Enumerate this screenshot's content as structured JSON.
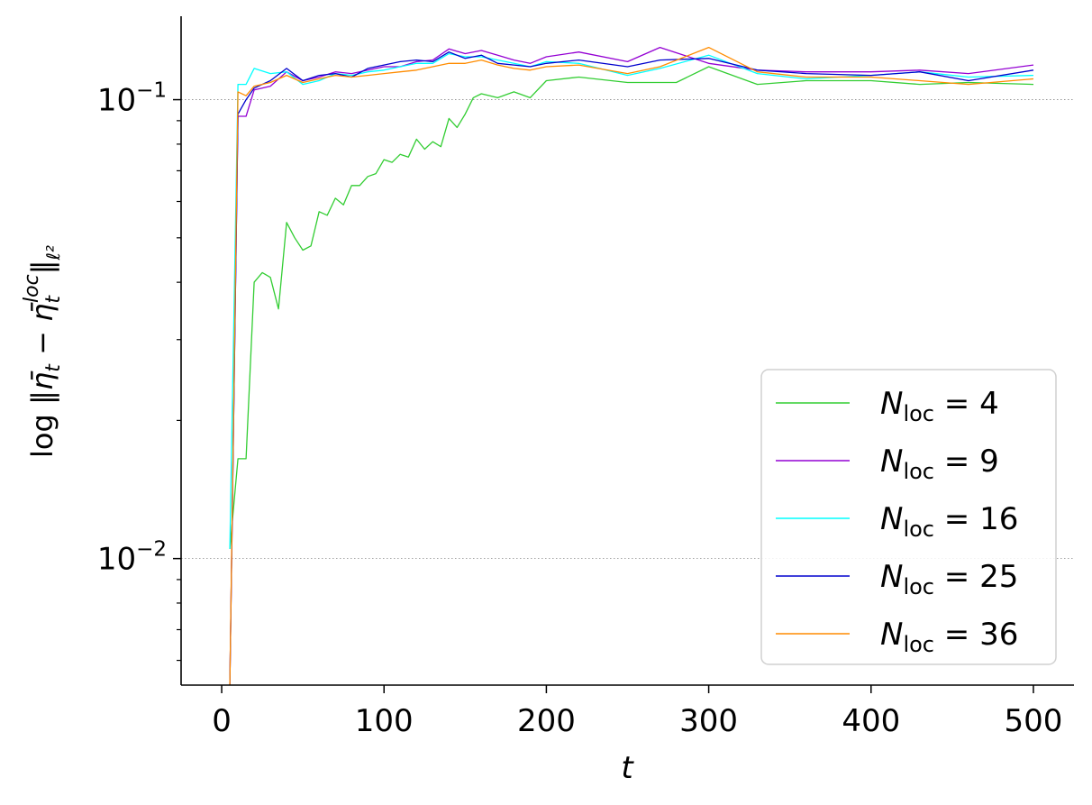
{
  "chart_data": {
    "type": "line",
    "xlabel": "t",
    "ylabel": "log ‖η̄t − η̄t^loc‖ℓ2",
    "x_ticks": [
      "0",
      "100",
      "200",
      "300",
      "400",
      "500"
    ],
    "x_tick_values": [
      0,
      100,
      200,
      300,
      400,
      500
    ],
    "y_scale": "log",
    "y_ticks": [
      {
        "value": 0.1,
        "base": "10",
        "exp": "−1"
      },
      {
        "value": 0.01,
        "base": "10",
        "exp": "−2"
      }
    ],
    "xlim": [
      -25,
      525
    ],
    "ylim": [
      0.0053,
      0.152
    ],
    "grid": "horizontal major, dotted",
    "legend_position": "lower-right",
    "series": [
      {
        "name_base": "N",
        "name_sub": "loc",
        "name_rest": " = 4",
        "color": "#32cd32",
        "x": [
          5,
          10,
          15,
          20,
          25,
          30,
          35,
          40,
          45,
          50,
          55,
          60,
          65,
          70,
          75,
          80,
          85,
          90,
          95,
          100,
          105,
          110,
          115,
          120,
          125,
          130,
          135,
          140,
          145,
          150,
          155,
          160,
          170,
          180,
          190,
          200,
          220,
          250,
          280,
          300,
          330,
          360,
          400,
          430,
          460,
          500
        ],
        "values": [
          0.0105,
          0.0165,
          0.0165,
          0.04,
          0.042,
          0.041,
          0.035,
          0.054,
          0.05,
          0.047,
          0.048,
          0.057,
          0.056,
          0.061,
          0.059,
          0.065,
          0.065,
          0.068,
          0.069,
          0.074,
          0.073,
          0.076,
          0.075,
          0.082,
          0.078,
          0.081,
          0.079,
          0.091,
          0.087,
          0.093,
          0.101,
          0.103,
          0.101,
          0.104,
          0.101,
          0.11,
          0.112,
          0.109,
          0.109,
          0.118,
          0.108,
          0.11,
          0.11,
          0.108,
          0.109,
          0.108
        ]
      },
      {
        "name_base": "N",
        "name_sub": "loc",
        "name_rest": " = 9",
        "color": "#9400d3",
        "x": [
          5,
          10,
          15,
          20,
          30,
          40,
          50,
          60,
          70,
          80,
          90,
          100,
          110,
          120,
          130,
          140,
          150,
          160,
          170,
          180,
          190,
          200,
          220,
          250,
          270,
          300,
          330,
          360,
          400,
          430,
          460,
          500
        ],
        "values": [
          0.005,
          0.092,
          0.092,
          0.105,
          0.107,
          0.115,
          0.11,
          0.112,
          0.115,
          0.114,
          0.116,
          0.118,
          0.118,
          0.121,
          0.122,
          0.129,
          0.126,
          0.128,
          0.125,
          0.122,
          0.12,
          0.124,
          0.127,
          0.121,
          0.13,
          0.12,
          0.116,
          0.115,
          0.115,
          0.116,
          0.114,
          0.119
        ]
      },
      {
        "name_base": "N",
        "name_sub": "loc",
        "name_rest": " = 16",
        "color": "#00ffff",
        "x": [
          5,
          10,
          15,
          20,
          30,
          40,
          50,
          60,
          70,
          80,
          90,
          100,
          110,
          120,
          130,
          140,
          150,
          160,
          170,
          180,
          190,
          200,
          220,
          250,
          270,
          300,
          330,
          360,
          400,
          430,
          460,
          500
        ],
        "values": [
          0.0105,
          0.108,
          0.108,
          0.117,
          0.114,
          0.115,
          0.108,
          0.11,
          0.114,
          0.113,
          0.115,
          0.116,
          0.118,
          0.12,
          0.12,
          0.126,
          0.124,
          0.124,
          0.122,
          0.12,
          0.118,
          0.121,
          0.12,
          0.113,
          0.117,
          0.125,
          0.114,
          0.111,
          0.113,
          0.115,
          0.112,
          0.113
        ]
      },
      {
        "name_base": "N",
        "name_sub": "loc",
        "name_rest": " = 25",
        "color": "#0000cd",
        "x": [
          5,
          10,
          15,
          20,
          30,
          40,
          50,
          60,
          70,
          80,
          90,
          100,
          110,
          120,
          130,
          140,
          150,
          160,
          170,
          180,
          190,
          200,
          220,
          250,
          270,
          300,
          330,
          360,
          400,
          430,
          460,
          500
        ],
        "values": [
          0.005,
          0.093,
          0.1,
          0.106,
          0.11,
          0.117,
          0.11,
          0.113,
          0.114,
          0.112,
          0.117,
          0.119,
          0.121,
          0.122,
          0.121,
          0.127,
          0.123,
          0.125,
          0.12,
          0.119,
          0.118,
          0.12,
          0.122,
          0.118,
          0.122,
          0.123,
          0.116,
          0.114,
          0.113,
          0.115,
          0.11,
          0.116
        ]
      },
      {
        "name_base": "N",
        "name_sub": "loc",
        "name_rest": " = 36",
        "color": "#ff8c00",
        "x": [
          5,
          10,
          15,
          20,
          30,
          40,
          50,
          60,
          70,
          80,
          90,
          100,
          110,
          120,
          130,
          140,
          150,
          160,
          170,
          180,
          190,
          200,
          220,
          250,
          270,
          300,
          330,
          360,
          400,
          430,
          460,
          500
        ],
        "values": [
          0.005,
          0.104,
          0.102,
          0.107,
          0.109,
          0.113,
          0.109,
          0.111,
          0.113,
          0.112,
          0.113,
          0.114,
          0.115,
          0.116,
          0.118,
          0.12,
          0.12,
          0.122,
          0.119,
          0.117,
          0.116,
          0.118,
          0.119,
          0.114,
          0.118,
          0.13,
          0.115,
          0.112,
          0.112,
          0.11,
          0.108,
          0.111
        ]
      }
    ]
  }
}
